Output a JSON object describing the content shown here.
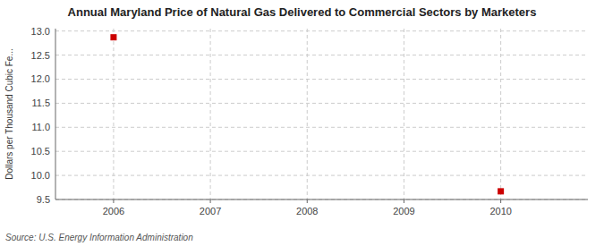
{
  "chart_data": {
    "type": "scatter",
    "title": "Annual Maryland Price of Natural Gas Delivered to Commercial Sectors by Marketers",
    "y_label": "Dollars per Thousand Cubic Fe...",
    "annotations": [
      "Source: U.S. Energy Information Administration"
    ],
    "x": [
      2006,
      2010
    ],
    "values": [
      12.87,
      9.67
    ],
    "color": "#cc0000",
    "marker": "square",
    "xlim": [
      2005.4,
      2010.9
    ],
    "xticks": [
      2006,
      2007,
      2008,
      2009,
      2010
    ],
    "ylim": [
      9.5,
      13.05
    ],
    "yticks": [
      9.5,
      {
        "value": 10.0,
        "label": "10.0"
      },
      10.5,
      {
        "value": 11.0,
        "label": "11.0"
      },
      11.5,
      {
        "value": 12.0,
        "label": "12.0"
      },
      12.5,
      {
        "value": 13.0,
        "label": "13.0"
      }
    ],
    "grid": true
  }
}
